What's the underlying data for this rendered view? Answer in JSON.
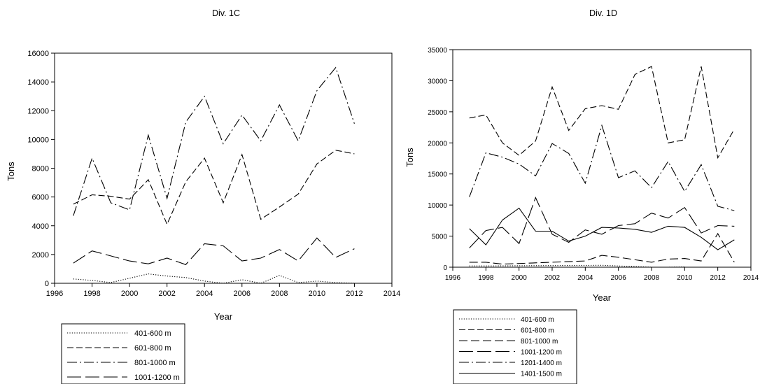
{
  "chart_data": [
    {
      "type": "line",
      "title": "Div. 1C",
      "xlabel": "Year",
      "ylabel": "Tons",
      "xlim": [
        1996,
        2014
      ],
      "ylim": [
        0,
        16000
      ],
      "xticks": [
        1996,
        1998,
        2000,
        2002,
        2004,
        2006,
        2008,
        2010,
        2012,
        2014
      ],
      "yticks": [
        0,
        2000,
        4000,
        6000,
        8000,
        10000,
        12000,
        14000,
        16000
      ],
      "grid": false,
      "legend_position": "below",
      "series": [
        {
          "name": "401-600 m",
          "style": "dotted",
          "points": [
            [
              1997,
              300
            ],
            [
              1998,
              200
            ],
            [
              1999,
              50
            ],
            [
              2000,
              350
            ],
            [
              2001,
              650
            ],
            [
              2002,
              500
            ],
            [
              2003,
              400
            ],
            [
              2004,
              150
            ],
            [
              2005,
              0
            ],
            [
              2006,
              250
            ],
            [
              2007,
              0
            ],
            [
              2008,
              550
            ],
            [
              2009,
              50
            ],
            [
              2010,
              150
            ],
            [
              2011,
              50
            ],
            [
              2012,
              0
            ]
          ]
        },
        {
          "name": "601-800 m",
          "style": "dashed",
          "points": [
            [
              1997,
              5500
            ],
            [
              1998,
              6150
            ],
            [
              1999,
              6050
            ],
            [
              2000,
              5850
            ],
            [
              2001,
              7200
            ],
            [
              2002,
              4100
            ],
            [
              2003,
              7050
            ],
            [
              2004,
              8700
            ],
            [
              2005,
              5600
            ],
            [
              2006,
              8950
            ],
            [
              2007,
              4450
            ],
            [
              2008,
              5300
            ],
            [
              2009,
              6200
            ],
            [
              2010,
              8300
            ],
            [
              2011,
              9250
            ],
            [
              2012,
              9000
            ]
          ]
        },
        {
          "name": "801-1000 m",
          "style": "dashdot",
          "points": [
            [
              1997,
              4700
            ],
            [
              1998,
              8700
            ],
            [
              1999,
              5600
            ],
            [
              2000,
              5100
            ],
            [
              2001,
              10300
            ],
            [
              2002,
              5900
            ],
            [
              2003,
              11200
            ],
            [
              2004,
              13000
            ],
            [
              2005,
              9700
            ],
            [
              2006,
              11700
            ],
            [
              2007,
              9900
            ],
            [
              2008,
              12400
            ],
            [
              2009,
              9900
            ],
            [
              2010,
              13400
            ],
            [
              2011,
              15000
            ],
            [
              2012,
              11100
            ]
          ]
        },
        {
          "name": "1001-1200 m",
          "style": "longdash",
          "points": [
            [
              1997,
              1400
            ],
            [
              1998,
              2250
            ],
            [
              1999,
              1900
            ],
            [
              2000,
              1550
            ],
            [
              2001,
              1350
            ],
            [
              2002,
              1750
            ],
            [
              2003,
              1300
            ],
            [
              2004,
              2750
            ],
            [
              2005,
              2600
            ],
            [
              2006,
              1550
            ],
            [
              2007,
              1750
            ],
            [
              2008,
              2350
            ],
            [
              2009,
              1550
            ],
            [
              2010,
              3150
            ],
            [
              2011,
              1800
            ],
            [
              2012,
              2400
            ]
          ]
        }
      ]
    },
    {
      "type": "line",
      "title": "Div. 1D",
      "xlabel": "Year",
      "ylabel": "Tons",
      "xlim": [
        1996,
        2014
      ],
      "ylim": [
        0,
        35000
      ],
      "xticks": [
        1996,
        1998,
        2000,
        2002,
        2004,
        2006,
        2008,
        2010,
        2012,
        2014
      ],
      "yticks": [
        0,
        5000,
        10000,
        15000,
        20000,
        25000,
        30000,
        35000
      ],
      "grid": false,
      "legend_position": "below",
      "series": [
        {
          "name": "401-600 m",
          "style": "dotted",
          "points": [
            [
              1997,
              200
            ],
            [
              1998,
              200
            ],
            [
              2005,
              300
            ],
            [
              2006,
              200
            ],
            [
              2007,
              100
            ],
            [
              2008,
              0
            ],
            [
              2009,
              0
            ],
            [
              2010,
              50
            ]
          ]
        },
        {
          "name": "601-800 m",
          "style": "dashed",
          "points": [
            [
              1997,
              24000
            ],
            [
              1998,
              24500
            ],
            [
              1999,
              20000
            ],
            [
              2000,
              18000
            ],
            [
              2001,
              20300
            ],
            [
              2002,
              29000
            ],
            [
              2003,
              22000
            ],
            [
              2004,
              25500
            ],
            [
              2005,
              26000
            ],
            [
              2006,
              25400
            ],
            [
              2007,
              31000
            ],
            [
              2008,
              32300
            ],
            [
              2009,
              20000
            ],
            [
              2010,
              20500
            ],
            [
              2011,
              32300
            ],
            [
              2012,
              17600
            ],
            [
              2013,
              22200
            ]
          ]
        },
        {
          "name": "801-1000 m",
          "style": "dashed2",
          "points": [
            [
              1997,
              800
            ],
            [
              1998,
              800
            ],
            [
              1999,
              500
            ],
            [
              2004,
              1000
            ],
            [
              2005,
              1900
            ],
            [
              2006,
              1600
            ],
            [
              2008,
              800
            ],
            [
              2009,
              1300
            ],
            [
              2010,
              1400
            ],
            [
              2011,
              1000
            ],
            [
              2012,
              5400
            ],
            [
              2013,
              800
            ]
          ]
        },
        {
          "name": "1001-1200 m",
          "style": "longdash",
          "points": [
            [
              1997,
              3100
            ],
            [
              1998,
              5900
            ],
            [
              1999,
              6400
            ],
            [
              2000,
              3800
            ],
            [
              2001,
              11200
            ],
            [
              2002,
              5300
            ],
            [
              2003,
              4000
            ],
            [
              2004,
              6000
            ],
            [
              2005,
              5300
            ],
            [
              2006,
              6700
            ],
            [
              2007,
              7000
            ],
            [
              2008,
              8700
            ],
            [
              2009,
              7900
            ],
            [
              2010,
              9600
            ],
            [
              2011,
              5500
            ],
            [
              2012,
              6700
            ],
            [
              2013,
              6600
            ]
          ]
        },
        {
          "name": "1201-1400 m",
          "style": "dashdot",
          "points": [
            [
              1997,
              11300
            ],
            [
              1998,
              18400
            ],
            [
              1999,
              17700
            ],
            [
              2000,
              16600
            ],
            [
              2001,
              14700
            ],
            [
              2002,
              19900
            ],
            [
              2003,
              18300
            ],
            [
              2004,
              13500
            ],
            [
              2005,
              22800
            ],
            [
              2006,
              14400
            ],
            [
              2007,
              15500
            ],
            [
              2008,
              12800
            ],
            [
              2009,
              17000
            ],
            [
              2010,
              12200
            ],
            [
              2011,
              16500
            ],
            [
              2012,
              9800
            ],
            [
              2013,
              9100
            ]
          ]
        },
        {
          "name": "1401-1500 m",
          "style": "solid",
          "points": [
            [
              1997,
              6200
            ],
            [
              1998,
              3600
            ],
            [
              1999,
              7600
            ],
            [
              2000,
              9500
            ],
            [
              2001,
              5800
            ],
            [
              2002,
              5800
            ],
            [
              2003,
              4200
            ],
            [
              2004,
              5000
            ],
            [
              2005,
              6400
            ],
            [
              2006,
              6300
            ],
            [
              2007,
              6100
            ],
            [
              2008,
              5600
            ],
            [
              2009,
              6600
            ],
            [
              2010,
              6400
            ],
            [
              2011,
              4800
            ],
            [
              2012,
              2800
            ],
            [
              2013,
              4400
            ]
          ]
        }
      ]
    }
  ]
}
